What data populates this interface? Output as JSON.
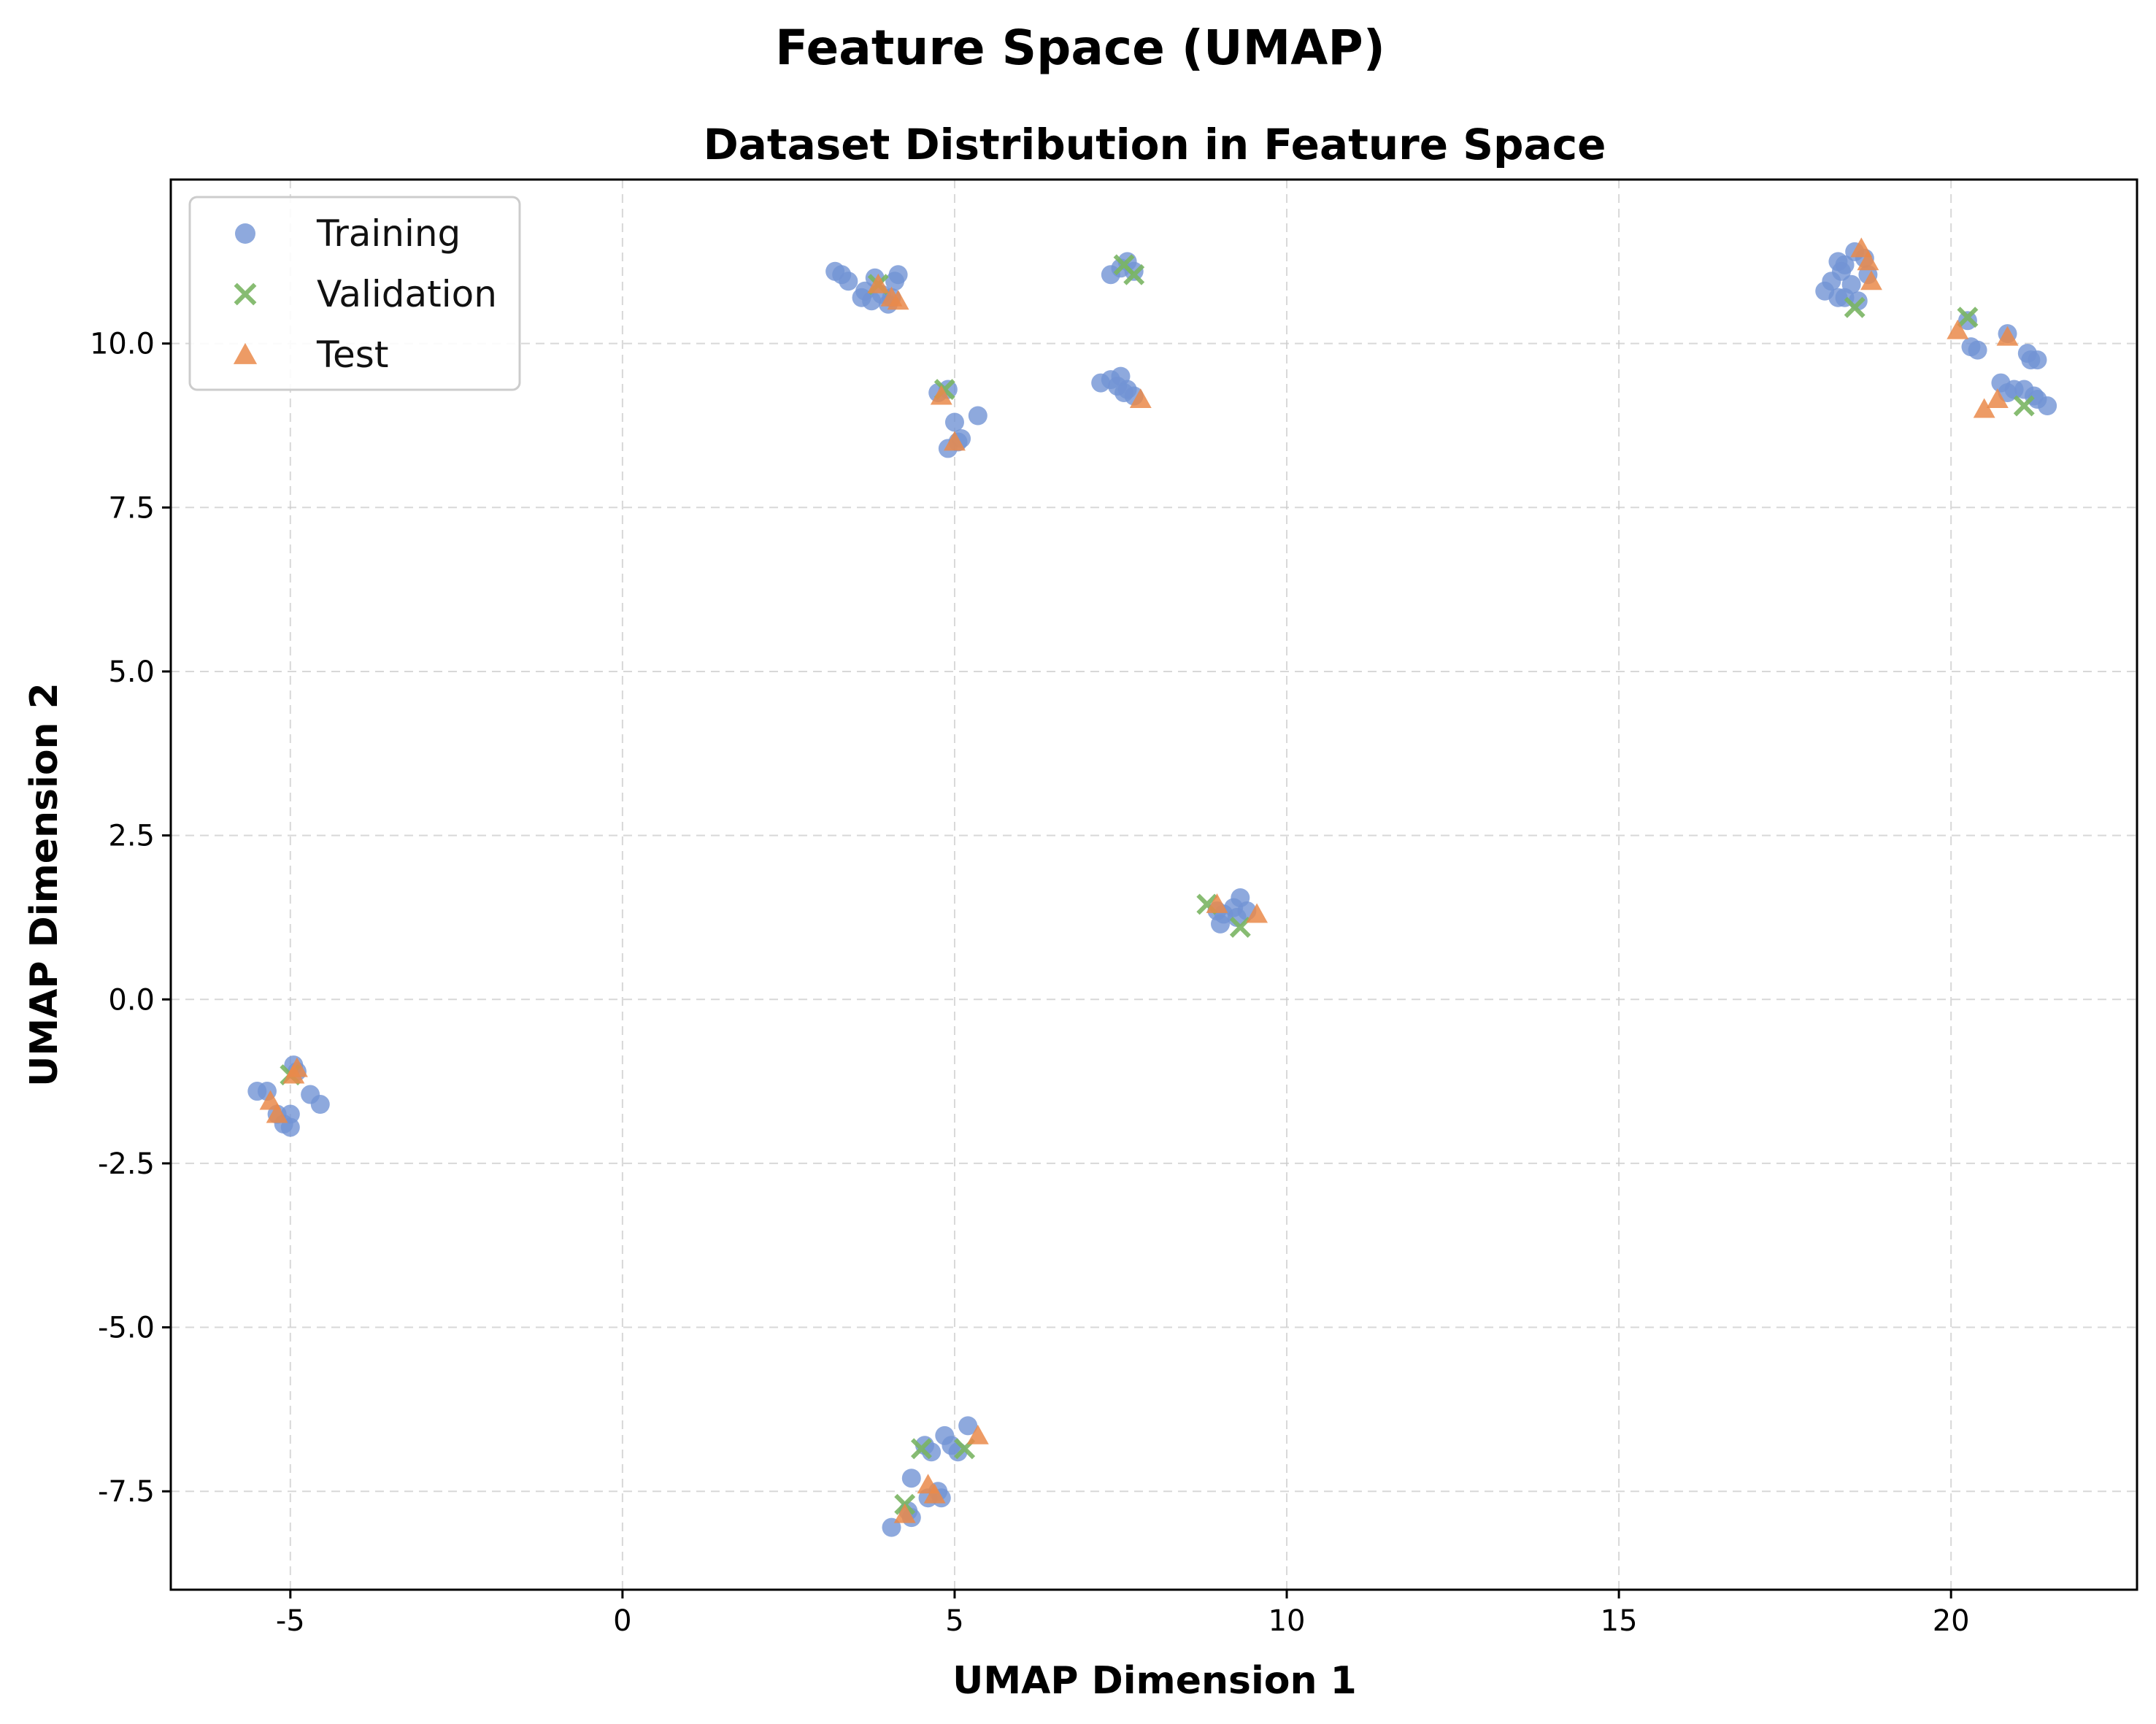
{
  "chart_data": {
    "type": "scatter",
    "suptitle": "Feature Space (UMAP)",
    "title": "Dataset Distribution in Feature Space",
    "xlabel": "UMAP Dimension 1",
    "ylabel": "UMAP Dimension 2",
    "xlim": [
      -6.8,
      22.8
    ],
    "ylim": [
      -9.0,
      12.5
    ],
    "xticks": [
      -5,
      0,
      5,
      10,
      15,
      20
    ],
    "xtick_labels": [
      "-5",
      "0",
      "5",
      "10",
      "15",
      "20"
    ],
    "yticks": [
      -7.5,
      -5.0,
      -2.5,
      0.0,
      2.5,
      5.0,
      7.5,
      10.0
    ],
    "ytick_labels": [
      "-7.5",
      "-5.0",
      "-2.5",
      "0.0",
      "2.5",
      "5.0",
      "7.5",
      "10.0"
    ],
    "grid": true,
    "legend_position": "top-left",
    "series": [
      {
        "name": "Training",
        "marker": "circle",
        "color": "#7294d4",
        "points": [
          [
            3.2,
            11.1
          ],
          [
            3.3,
            11.05
          ],
          [
            3.4,
            10.95
          ],
          [
            3.6,
            10.7
          ],
          [
            3.65,
            10.8
          ],
          [
            3.8,
            11.0
          ],
          [
            3.9,
            10.75
          ],
          [
            4.0,
            10.6
          ],
          [
            4.1,
            10.95
          ],
          [
            4.15,
            11.05
          ],
          [
            3.75,
            10.65
          ],
          [
            4.05,
            10.7
          ],
          [
            4.75,
            9.25
          ],
          [
            4.9,
            9.3
          ],
          [
            5.0,
            8.8
          ],
          [
            5.1,
            8.55
          ],
          [
            5.35,
            8.9
          ],
          [
            4.9,
            8.4
          ],
          [
            5.05,
            8.5
          ],
          [
            7.35,
            11.05
          ],
          [
            7.5,
            11.15
          ],
          [
            7.6,
            11.25
          ],
          [
            7.7,
            11.1
          ],
          [
            7.2,
            9.4
          ],
          [
            7.35,
            9.45
          ],
          [
            7.5,
            9.5
          ],
          [
            7.6,
            9.3
          ],
          [
            7.7,
            9.2
          ],
          [
            7.45,
            9.35
          ],
          [
            7.55,
            9.25
          ],
          [
            -5.5,
            -1.4
          ],
          [
            -5.35,
            -1.4
          ],
          [
            -5.1,
            -1.9
          ],
          [
            -5.0,
            -1.75
          ],
          [
            -5.0,
            -1.95
          ],
          [
            -4.95,
            -1.0
          ],
          [
            -4.9,
            -1.1
          ],
          [
            -4.7,
            -1.45
          ],
          [
            -4.55,
            -1.6
          ],
          [
            -5.2,
            -1.75
          ],
          [
            9.0,
            1.15
          ],
          [
            9.05,
            1.3
          ],
          [
            9.2,
            1.4
          ],
          [
            9.3,
            1.55
          ],
          [
            9.4,
            1.35
          ],
          [
            9.25,
            1.25
          ],
          [
            8.95,
            1.35
          ],
          [
            4.05,
            -8.05
          ],
          [
            4.3,
            -7.8
          ],
          [
            4.35,
            -7.9
          ],
          [
            4.35,
            -7.3
          ],
          [
            4.55,
            -6.8
          ],
          [
            4.65,
            -6.9
          ],
          [
            4.75,
            -7.5
          ],
          [
            4.8,
            -7.6
          ],
          [
            4.85,
            -6.65
          ],
          [
            4.95,
            -6.8
          ],
          [
            5.05,
            -6.9
          ],
          [
            5.2,
            -6.5
          ],
          [
            4.6,
            -7.6
          ],
          [
            18.1,
            10.8
          ],
          [
            18.2,
            10.95
          ],
          [
            18.3,
            11.25
          ],
          [
            18.35,
            11.1
          ],
          [
            18.4,
            11.2
          ],
          [
            18.5,
            10.9
          ],
          [
            18.55,
            11.4
          ],
          [
            18.4,
            10.7
          ],
          [
            18.6,
            10.65
          ],
          [
            18.7,
            11.3
          ],
          [
            18.75,
            11.05
          ],
          [
            18.3,
            10.7
          ],
          [
            20.25,
            10.35
          ],
          [
            20.3,
            9.95
          ],
          [
            20.4,
            9.9
          ],
          [
            20.75,
            9.4
          ],
          [
            20.85,
            9.25
          ],
          [
            20.95,
            9.3
          ],
          [
            20.85,
            10.15
          ],
          [
            21.1,
            9.3
          ],
          [
            21.15,
            9.85
          ],
          [
            21.2,
            9.75
          ],
          [
            21.3,
            9.15
          ],
          [
            21.3,
            9.75
          ],
          [
            21.45,
            9.05
          ],
          [
            21.25,
            9.2
          ]
        ]
      },
      {
        "name": "Validation",
        "marker": "x",
        "color": "#7ab563",
        "points": [
          [
            3.85,
            10.9
          ],
          [
            4.85,
            9.3
          ],
          [
            7.55,
            11.2
          ],
          [
            7.7,
            11.05
          ],
          [
            -5.0,
            -1.15
          ],
          [
            8.8,
            1.45
          ],
          [
            9.3,
            1.1
          ],
          [
            4.5,
            -6.85
          ],
          [
            4.25,
            -7.7
          ],
          [
            5.15,
            -6.85
          ],
          [
            18.55,
            10.55
          ],
          [
            20.25,
            10.4
          ],
          [
            21.1,
            9.05
          ]
        ]
      },
      {
        "name": "Test",
        "marker": "triangle",
        "color": "#ea8a4a",
        "points": [
          [
            3.85,
            10.9
          ],
          [
            4.05,
            10.7
          ],
          [
            4.15,
            10.65
          ],
          [
            4.8,
            9.2
          ],
          [
            5.0,
            8.5
          ],
          [
            7.8,
            9.15
          ],
          [
            -5.3,
            -1.55
          ],
          [
            -5.2,
            -1.75
          ],
          [
            -4.95,
            -1.15
          ],
          [
            -4.9,
            -1.05
          ],
          [
            8.95,
            1.45
          ],
          [
            9.55,
            1.3
          ],
          [
            4.25,
            -7.85
          ],
          [
            4.6,
            -7.4
          ],
          [
            4.7,
            -7.55
          ],
          [
            5.35,
            -6.65
          ],
          [
            18.65,
            11.45
          ],
          [
            18.75,
            11.25
          ],
          [
            18.8,
            10.95
          ],
          [
            20.1,
            10.2
          ],
          [
            20.5,
            9.0
          ],
          [
            20.7,
            9.15
          ],
          [
            20.85,
            10.1
          ]
        ]
      }
    ]
  }
}
